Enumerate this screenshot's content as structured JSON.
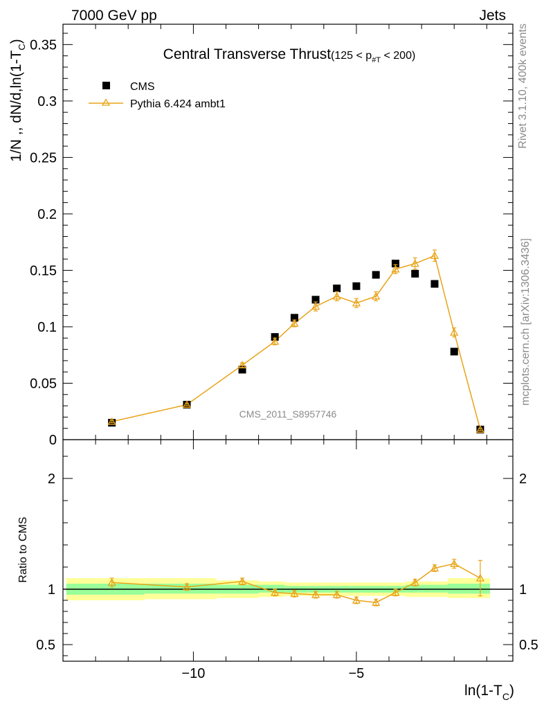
{
  "header": {
    "left": "7000 GeV pp",
    "right": "Jets"
  },
  "side_labels": {
    "rivet": "Rivet 3.1.10,  400k events",
    "mcplots": "mcplots.cern.ch [arXiv:1306.3436]"
  },
  "watermark": "CMS_2011_S8957746",
  "colors": {
    "cms": "#000000",
    "pythia": "#e8a317",
    "band_inner": "#99ff99",
    "band_outer": "#ffff99"
  },
  "chart_data": [
    {
      "type": "scatter",
      "title": "Central Transverse Thrust",
      "title_suffix": "(125 < p",
      "title_sub": "#T",
      "title_end": " < 200)",
      "ylabel": "1/N ,, dN/d,ln(1-T",
      "ylabel_sub": "C",
      "ylabel_end": ")",
      "xlim": [
        -14.0,
        -0.2
      ],
      "ylim": [
        0,
        0.368
      ],
      "yticks": [
        0,
        0.05,
        0.1,
        0.15,
        0.2,
        0.25,
        0.3,
        0.35
      ],
      "ytick_labels": [
        "0",
        "0.05",
        "0.1",
        "0.15",
        "0.2",
        "0.25",
        "0.3",
        "0.35"
      ],
      "legend_position": "top-left",
      "series": [
        {
          "name": "CMS",
          "marker": "square",
          "x": [
            -12.5,
            -10.2,
            -8.5,
            -7.5,
            -6.9,
            -6.25,
            -5.6,
            -5.0,
            -4.4,
            -3.8,
            -3.2,
            -2.6,
            -2.0,
            -1.2
          ],
          "y": [
            0.015,
            0.031,
            0.062,
            0.091,
            0.108,
            0.124,
            0.134,
            0.136,
            0.146,
            0.156,
            0.147,
            0.138,
            0.078,
            0.009
          ]
        },
        {
          "name": "Pythia 6.424 ambt1",
          "marker": "triangle",
          "x": [
            -12.5,
            -10.2,
            -8.5,
            -7.5,
            -6.9,
            -6.25,
            -5.6,
            -5.0,
            -4.4,
            -3.8,
            -3.2,
            -2.6,
            -2.0,
            -1.2
          ],
          "y": [
            0.016,
            0.031,
            0.066,
            0.087,
            0.103,
            0.118,
            0.127,
            0.121,
            0.127,
            0.151,
            0.156,
            0.163,
            0.095,
            0.009
          ],
          "err": [
            0.001,
            0.001,
            0.002,
            0.003,
            0.003,
            0.004,
            0.004,
            0.004,
            0.004,
            0.004,
            0.005,
            0.005,
            0.004,
            0.001
          ]
        }
      ]
    },
    {
      "type": "scatter",
      "ylabel": "Ratio to CMS",
      "xlabel": "ln(1-T",
      "xlabel_sub": "C",
      "xlabel_end": ")",
      "xlim": [
        -14.0,
        -0.2
      ],
      "ylim": [
        0.35,
        2.35
      ],
      "yticks": [
        0.5,
        1,
        2
      ],
      "ytick_labels": [
        "0.5",
        "1",
        "2"
      ],
      "xticks": [
        -10,
        -5
      ],
      "xtick_labels": [
        "−10",
        "−5"
      ],
      "bands": [
        {
          "x0": -13.9,
          "x1": -11.5,
          "inner": [
            0.95,
            1.05
          ],
          "outer": [
            0.9,
            1.1
          ]
        },
        {
          "x0": -11.5,
          "x1": -9.3,
          "inner": [
            0.96,
            1.05
          ],
          "outer": [
            0.91,
            1.1
          ]
        },
        {
          "x0": -9.3,
          "x1": -8.0,
          "inner": [
            0.96,
            1.04
          ],
          "outer": [
            0.92,
            1.08
          ]
        },
        {
          "x0": -8.0,
          "x1": -7.2,
          "inner": [
            0.97,
            1.04
          ],
          "outer": [
            0.93,
            1.07
          ]
        },
        {
          "x0": -7.2,
          "x1": -5.4,
          "inner": [
            0.97,
            1.03
          ],
          "outer": [
            0.94,
            1.06
          ]
        },
        {
          "x0": -5.4,
          "x1": -3.5,
          "inner": [
            0.97,
            1.03
          ],
          "outer": [
            0.94,
            1.06
          ]
        },
        {
          "x0": -3.5,
          "x1": -2.2,
          "inner": [
            0.97,
            1.04
          ],
          "outer": [
            0.93,
            1.07
          ]
        },
        {
          "x0": -2.2,
          "x1": -0.9,
          "inner": [
            0.96,
            1.05
          ],
          "outer": [
            0.92,
            1.1
          ]
        }
      ],
      "series": [
        {
          "name": "Pythia 6.424 ambt1",
          "x": [
            -12.5,
            -10.2,
            -8.5,
            -7.5,
            -6.9,
            -6.25,
            -5.6,
            -5.0,
            -4.4,
            -3.8,
            -3.2,
            -2.6,
            -2.0,
            -1.2
          ],
          "y": [
            1.06,
            1.02,
            1.07,
            0.97,
            0.96,
            0.95,
            0.95,
            0.9,
            0.88,
            0.97,
            1.06,
            1.19,
            1.23,
            1.1
          ],
          "err": [
            0.04,
            0.03,
            0.03,
            0.03,
            0.03,
            0.03,
            0.03,
            0.03,
            0.03,
            0.03,
            0.03,
            0.03,
            0.04,
            0.16
          ]
        }
      ]
    }
  ]
}
